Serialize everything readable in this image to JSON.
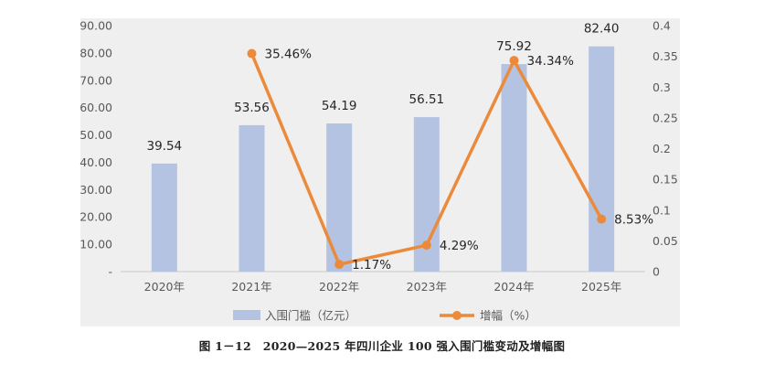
{
  "chart_data": {
    "type": "bar",
    "categories": [
      "2020年",
      "2021年",
      "2022年",
      "2023年",
      "2024年",
      "2025年"
    ],
    "series": [
      {
        "name": "入围门槛（亿元）",
        "chart": "bar",
        "axis": "left",
        "values": [
          39.54,
          53.56,
          54.19,
          56.51,
          75.92,
          82.4
        ],
        "labels": [
          "39.54",
          "53.56",
          "54.19",
          "56.51",
          "75.92",
          "82.40"
        ],
        "color": "#b4c3e2"
      },
      {
        "name": "增幅（%）",
        "chart": "line",
        "axis": "right",
        "values": [
          null,
          0.3546,
          0.0117,
          0.0429,
          0.3434,
          0.0853
        ],
        "labels": [
          "",
          "35.46%",
          "1.17%",
          "4.29%",
          "34.34%",
          "8.53%"
        ],
        "color": "#ec8a3c"
      }
    ],
    "y_left": {
      "ylim": [
        0,
        90
      ],
      "ticks": [
        "-",
        "10.00",
        "20.00",
        "30.00",
        "40.00",
        "50.00",
        "60.00",
        "70.00",
        "80.00",
        "90.00"
      ]
    },
    "y_right": {
      "ylim": [
        0,
        0.4
      ],
      "ticks": [
        "0",
        "0.05",
        "0.1",
        "0.15",
        "0.2",
        "0.25",
        "0.3",
        "0.35",
        "0.4"
      ]
    },
    "grid": false,
    "legend": "bottom-center",
    "background": "#efefef"
  },
  "caption": "图 1－12　2020—2025 年四川企业 100 强入围门槛变动及增幅图"
}
